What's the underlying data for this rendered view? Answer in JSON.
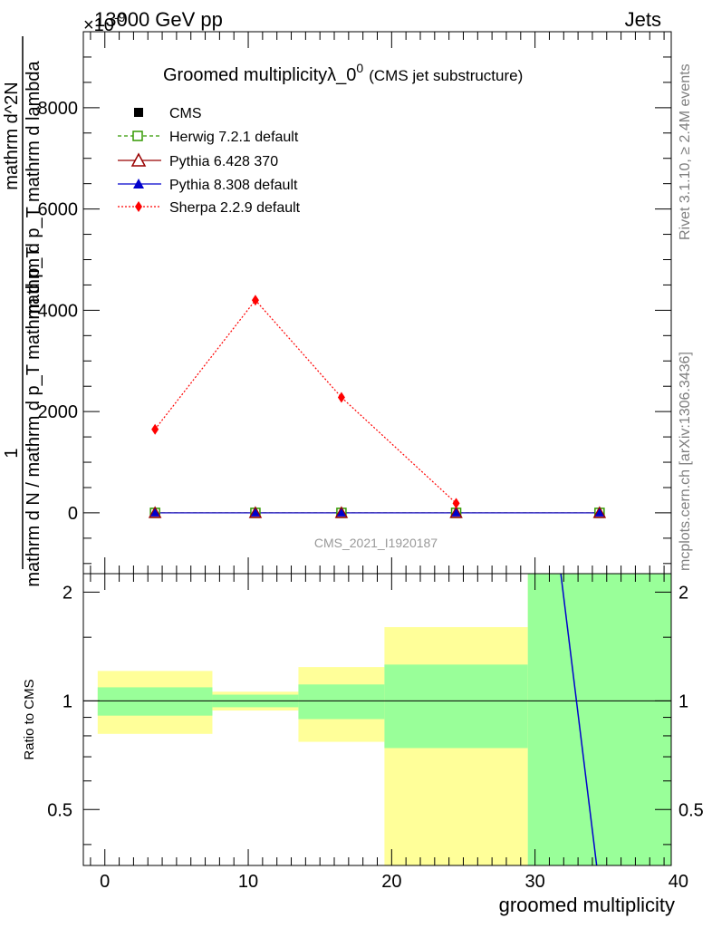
{
  "header": {
    "energy_label": "13000 GeV pp",
    "process_label": "Jets",
    "exponent_label": "×10",
    "exponent_sup": "-9"
  },
  "side_labels": {
    "rivet": "Rivet 3.1.10, ≥ 2.4M events",
    "mcplots": "mcplots.cern.ch [arXiv:1306.3436]"
  },
  "chart_data": [
    {
      "type": "line",
      "title": "Groomed multiplicityλ_0",
      "title_sup": "0",
      "subtitle": "(CMS jet substructure)",
      "watermark": "CMS_2021_I1920187",
      "ylabel_numerator": "1",
      "ylabel_denominator": "mathrm d N / mathrm d p_T mathrm d p_T",
      "ylabel_right_numerator": "mathrm d^2N",
      "ylabel_right_denominator": "mathrm d p_T mathrm d lambda",
      "xlim": [
        -1.5,
        39.5
      ],
      "ylim": [
        -1200,
        9500
      ],
      "yticks": [
        0,
        2000,
        4000,
        6000,
        8000
      ],
      "ytick_labels": [
        "0",
        "2000",
        "4000",
        "6000",
        "8000"
      ],
      "series": [
        {
          "name": "CMS",
          "x": [
            3.5,
            10.5,
            16.5,
            24.5,
            34.5
          ],
          "y": [
            0,
            0,
            0,
            0,
            0
          ]
        },
        {
          "name": "Herwig 7.2.1 default",
          "x": [
            3.5,
            10.5,
            16.5,
            24.5,
            34.5
          ],
          "y": [
            0,
            0,
            0,
            0,
            0
          ]
        },
        {
          "name": "Pythia 6.428 370",
          "x": [
            3.5,
            10.5,
            16.5,
            24.5,
            34.5
          ],
          "y": [
            0,
            0,
            0,
            0,
            0
          ]
        },
        {
          "name": "Pythia 8.308 default",
          "x": [
            3.5,
            10.5,
            16.5,
            24.5,
            34.5
          ],
          "y": [
            0,
            0,
            0,
            0,
            0
          ]
        },
        {
          "name": "Sherpa 2.2.9 default",
          "x": [
            3.5,
            10.5,
            16.5,
            24.5
          ],
          "y": [
            1650,
            4200,
            2280,
            190
          ]
        }
      ]
    },
    {
      "type": "area",
      "ylabel": "Ratio to CMS",
      "xlabel": "groomed multiplicity",
      "xlim": [
        -1.5,
        39.5
      ],
      "ylim": [
        0.35,
        2.25
      ],
      "xticks": [
        0,
        10,
        20,
        30,
        40
      ],
      "xtick_labels": [
        "0",
        "10",
        "20",
        "30",
        "40"
      ],
      "yticks": [
        0.5,
        1,
        2
      ],
      "ytick_labels": [
        "0.5",
        "1",
        "2"
      ],
      "bands": [
        {
          "x0": -0.5,
          "x1": 7.5,
          "inner": [
            0.91,
            1.09
          ],
          "outer": [
            0.81,
            1.21
          ]
        },
        {
          "x0": 7.5,
          "x1": 13.5,
          "inner": [
            0.96,
            1.04
          ],
          "outer": [
            0.94,
            1.06
          ]
        },
        {
          "x0": 13.5,
          "x1": 19.5,
          "inner": [
            0.89,
            1.11
          ],
          "outer": [
            0.77,
            1.24
          ]
        },
        {
          "x0": 19.5,
          "x1": 29.5,
          "inner": [
            0.74,
            1.26
          ],
          "outer": [
            0.3,
            1.6
          ]
        },
        {
          "x0": 29.5,
          "x1": 39.5,
          "inner": [
            0.3,
            2.3
          ],
          "outer": [
            0.3,
            2.3
          ]
        }
      ],
      "series": [
        {
          "name": "Pythia 8.308 default",
          "x": [
            31.8,
            34.3
          ],
          "y": [
            2.3,
            0.35
          ]
        }
      ]
    }
  ],
  "colors": {
    "cms": "#000000",
    "herwig": "#339900",
    "pythia6": "#990000",
    "pythia8": "#0000cc",
    "sherpa": "#ff0000",
    "band_inner": "#99ff99",
    "band_outer": "#ffff99",
    "watermark": "#999999",
    "side_text": "#7f7f7f"
  }
}
